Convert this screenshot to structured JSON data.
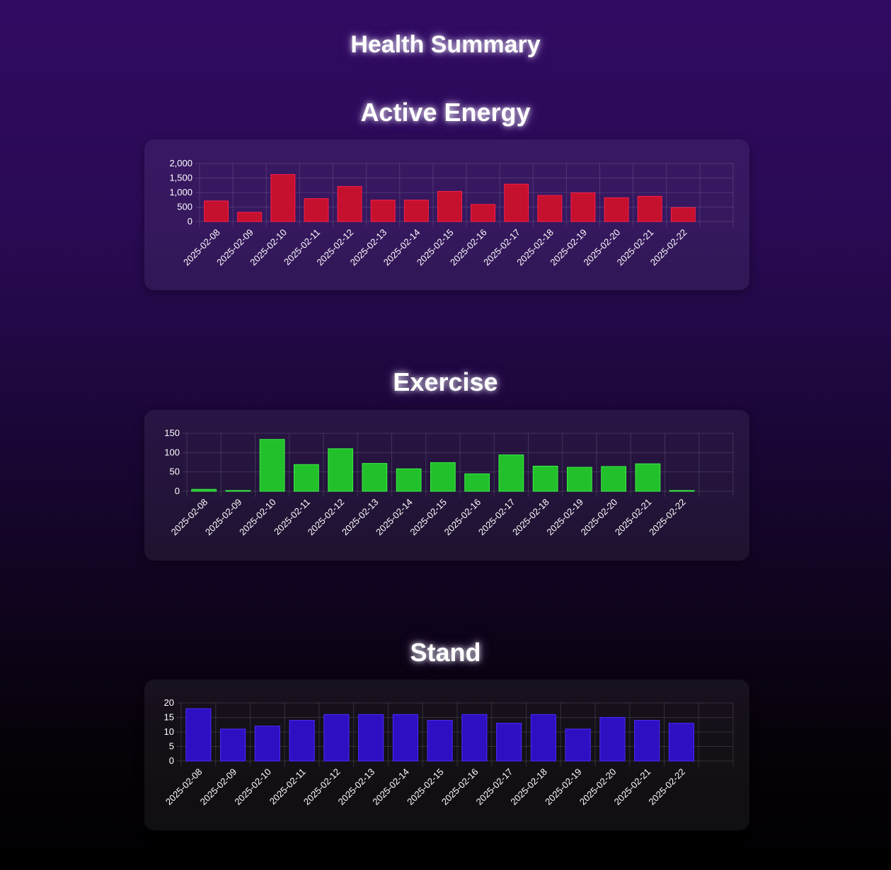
{
  "page": {
    "title": "Health Summary"
  },
  "chart_data": [
    {
      "type": "bar",
      "title": "Active Energy",
      "categories": [
        "2025-02-08",
        "2025-02-09",
        "2025-02-10",
        "2025-02-11",
        "2025-02-12",
        "2025-02-13",
        "2025-02-14",
        "2025-02-15",
        "2025-02-16",
        "2025-02-17",
        "2025-02-18",
        "2025-02-19",
        "2025-02-20",
        "2025-02-21",
        "2025-02-22"
      ],
      "values": [
        710,
        320,
        1620,
        790,
        1210,
        740,
        740,
        1040,
        590,
        1290,
        900,
        990,
        820,
        870,
        480
      ],
      "ylim": [
        0,
        2000
      ],
      "yticks": [
        "0",
        "500",
        "1,000",
        "1,500",
        "2,000"
      ],
      "grid": true,
      "color": "#c5102e",
      "border_color": "#ff1f45"
    },
    {
      "type": "bar",
      "title": "Exercise",
      "categories": [
        "2025-02-08",
        "2025-02-09",
        "2025-02-10",
        "2025-02-11",
        "2025-02-12",
        "2025-02-13",
        "2025-02-14",
        "2025-02-15",
        "2025-02-16",
        "2025-02-17",
        "2025-02-18",
        "2025-02-19",
        "2025-02-20",
        "2025-02-21",
        "2025-02-22"
      ],
      "values": [
        5,
        2,
        134,
        69,
        110,
        72,
        58,
        74,
        45,
        94,
        65,
        62,
        64,
        71,
        2
      ],
      "ylim": [
        0,
        150
      ],
      "yticks": [
        "0",
        "50",
        "100",
        "150"
      ],
      "grid": true,
      "color": "#22c02a",
      "border_color": "#3bf046"
    },
    {
      "type": "bar",
      "title": "Stand",
      "categories": [
        "2025-02-08",
        "2025-02-09",
        "2025-02-10",
        "2025-02-11",
        "2025-02-12",
        "2025-02-13",
        "2025-02-14",
        "2025-02-15",
        "2025-02-16",
        "2025-02-17",
        "2025-02-18",
        "2025-02-19",
        "2025-02-20",
        "2025-02-21",
        "2025-02-22"
      ],
      "values": [
        18,
        11,
        12,
        14,
        16,
        16,
        16,
        14,
        16,
        13,
        16,
        11,
        15,
        14,
        13
      ],
      "ylim": [
        0,
        20
      ],
      "yticks": [
        "0",
        "5",
        "10",
        "15",
        "20"
      ],
      "grid": true,
      "color": "#2f0fc2",
      "border_color": "#4a2cff"
    }
  ]
}
